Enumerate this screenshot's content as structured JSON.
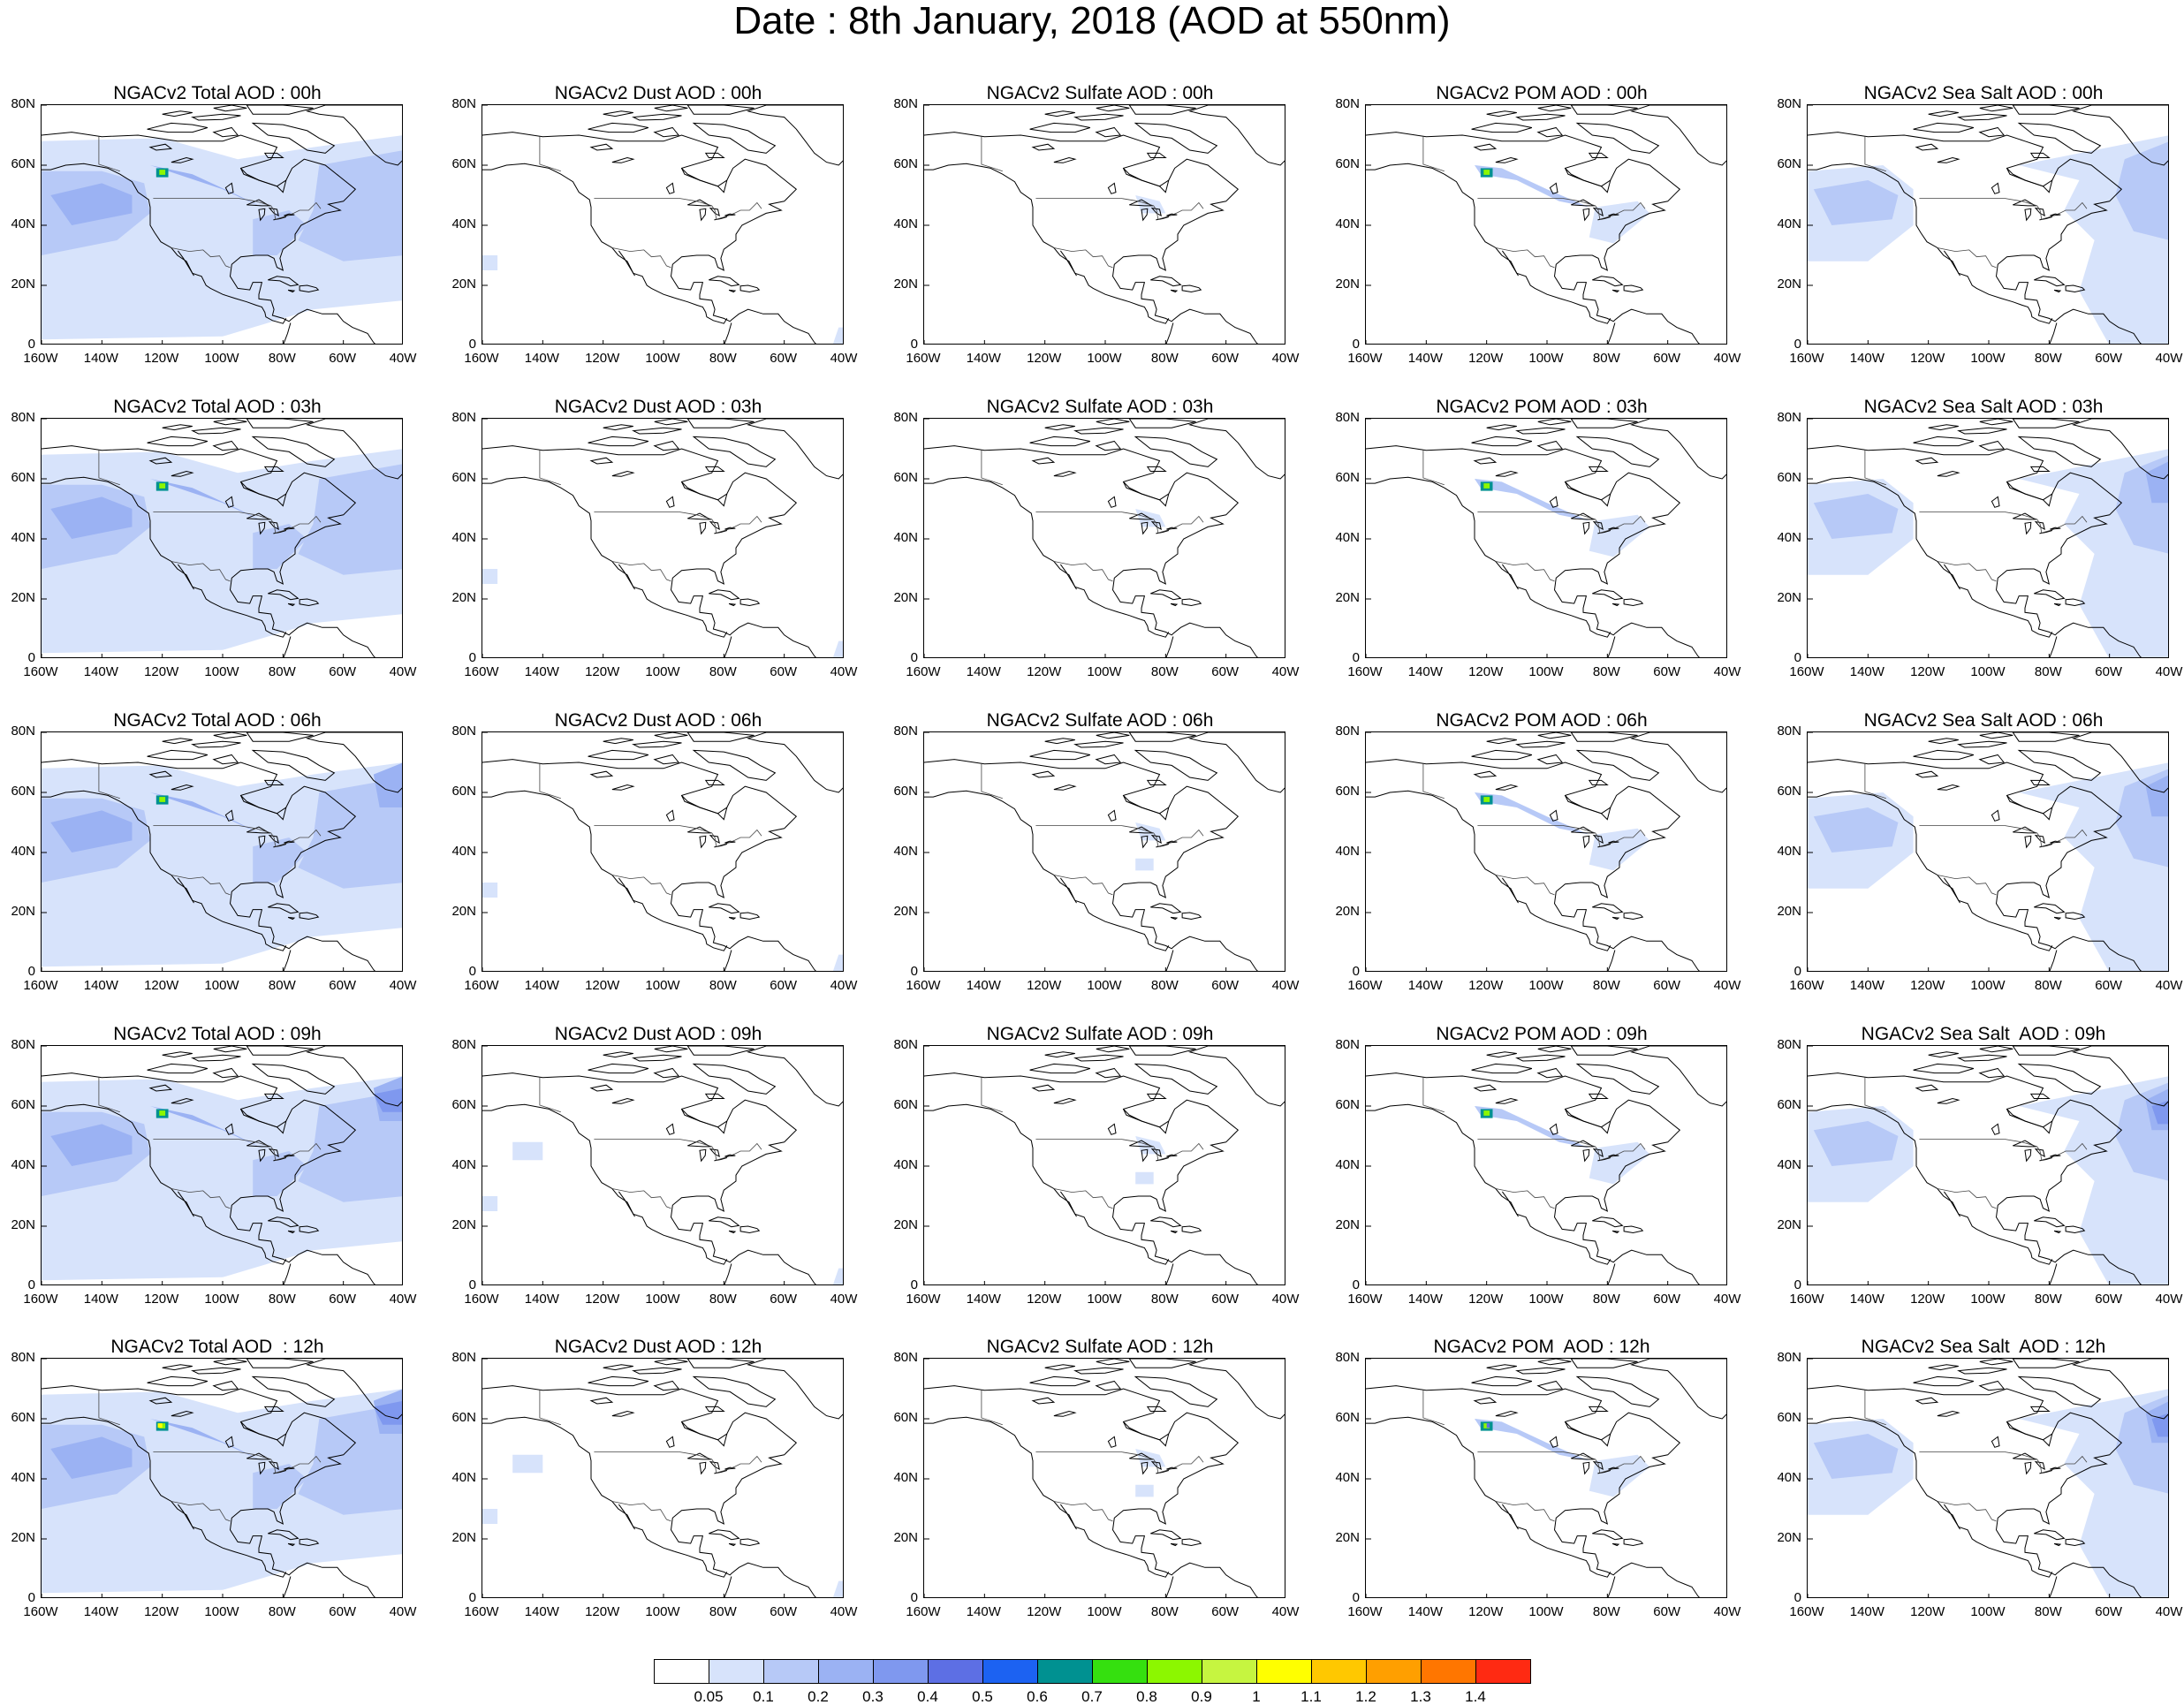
{
  "title": "Date : 8th January, 2018 (AOD at 550nm)",
  "map_axes": {
    "lat_labels": [
      "80N",
      "60N",
      "40N",
      "20N",
      "0"
    ],
    "lon_labels": [
      "160W",
      "140W",
      "120W",
      "100W",
      "80W",
      "60W",
      "40W"
    ]
  },
  "rows": [
    {
      "hour": "00h",
      "titles": [
        "NGACv2 Total AOD : 00h",
        "NGACv2 Dust AOD : 00h",
        "NGACv2 Sulfate AOD : 00h",
        "NGACv2 POM AOD : 00h",
        "NGACv2 Sea Salt AOD : 00h"
      ]
    },
    {
      "hour": "03h",
      "titles": [
        "NGACv2 Total AOD : 03h",
        "NGACv2 Dust AOD : 03h",
        "NGACv2 Sulfate AOD : 03h",
        "NGACv2 POM AOD : 03h",
        "NGACv2 Sea Salt AOD : 03h"
      ]
    },
    {
      "hour": "06h",
      "titles": [
        "NGACv2 Total AOD : 06h",
        "NGACv2 Dust AOD : 06h",
        "NGACv2 Sulfate AOD : 06h",
        "NGACv2 POM AOD : 06h",
        "NGACv2 Sea Salt AOD : 06h"
      ]
    },
    {
      "hour": "09h",
      "titles": [
        "NGACv2 Total AOD : 09h",
        "NGACv2 Dust AOD : 09h",
        "NGACv2 Sulfate AOD : 09h",
        "NGACv2 POM AOD : 09h",
        "NGACv2 Sea Salt  AOD : 09h"
      ]
    },
    {
      "hour": "12h",
      "titles": [
        "NGACv2 Total AOD  : 12h",
        "NGACv2 Dust AOD : 12h",
        "NGACv2 Sulfate AOD : 12h",
        "NGACv2 POM  AOD : 12h",
        "NGACv2 Sea Salt  AOD : 12h"
      ]
    }
  ],
  "columns": [
    "Total",
    "Dust",
    "Sulfate",
    "POM",
    "Sea Salt"
  ],
  "colorbar": {
    "labels": [
      "0.05",
      "0.1",
      "0.2",
      "0.3",
      "0.4",
      "0.5",
      "0.6",
      "0.7",
      "0.8",
      "0.9",
      "1",
      "1.1",
      "1.2",
      "1.3",
      "1.4"
    ],
    "colors": [
      "#ffffff",
      "#d7e3fb",
      "#b7c9f7",
      "#9bb2f3",
      "#7f98ef",
      "#5d6fe4",
      "#1c62f2",
      "#009191",
      "#35e00f",
      "#8cf700",
      "#c6f540",
      "#ffff00",
      "#ffc800",
      "#ff9f00",
      "#ff7600",
      "#ff2a12"
    ]
  }
}
